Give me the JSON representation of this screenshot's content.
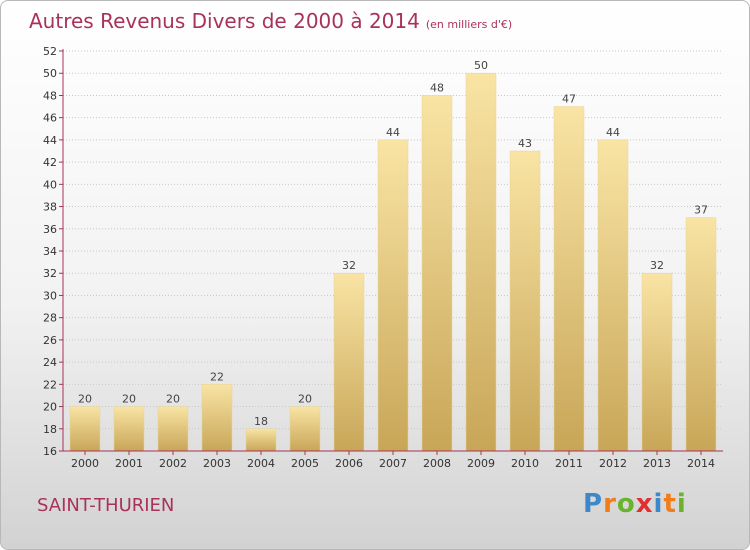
{
  "title": "Autres Revenus Divers de 2000 à 2014",
  "title_unit": "(en milliers d'€)",
  "place": "SAINT-THURIEN",
  "logo": {
    "text": "Proxiti",
    "letters": [
      "P",
      "r",
      "o",
      "x",
      "i",
      "t",
      "i"
    ],
    "colors": [
      "#3d88c8",
      "#f07d1a",
      "#6ab42d",
      "#e03030",
      "#3d88c8",
      "#f07d1a",
      "#6ab42d"
    ]
  },
  "colors": {
    "title": "#a8325a",
    "bar_light": "#f9e4a4",
    "bar_dark": "#c8a658",
    "grid": "#c8c8c8",
    "axis": "#a8325a"
  },
  "chart_data": {
    "type": "bar",
    "title": "Autres Revenus Divers de 2000 à 2014",
    "subtitle": "(en milliers d'€)",
    "xlabel": "",
    "ylabel": "",
    "categories": [
      "2000",
      "2001",
      "2002",
      "2003",
      "2004",
      "2005",
      "2006",
      "2007",
      "2008",
      "2009",
      "2010",
      "2011",
      "2012",
      "2013",
      "2014"
    ],
    "values": [
      20,
      20,
      20,
      22,
      18,
      20,
      32,
      44,
      48,
      50,
      43,
      47,
      44,
      32,
      37
    ],
    "ylim": [
      16,
      52
    ],
    "yticks": [
      16,
      18,
      20,
      22,
      24,
      26,
      28,
      30,
      32,
      34,
      36,
      38,
      40,
      42,
      44,
      46,
      48,
      50,
      52
    ],
    "grid": true,
    "legend": "none"
  }
}
